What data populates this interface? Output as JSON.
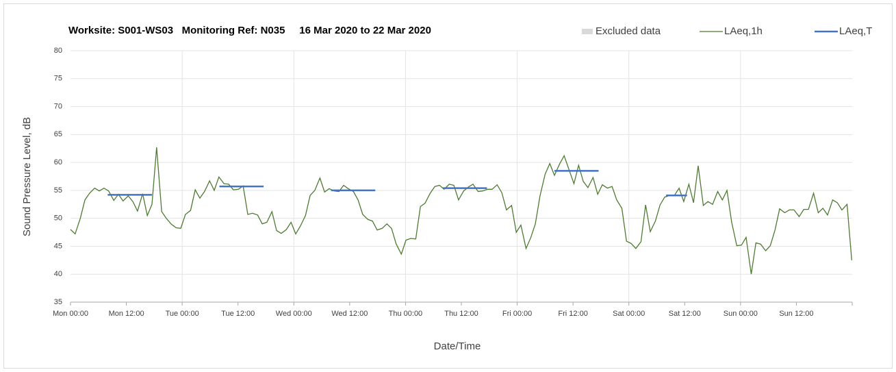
{
  "chart_data": {
    "type": "line",
    "title": "Worksite: S001-WS03   Monitoring Ref: N035     16 Mar 2020 to 22 Mar 2020",
    "xlabel": "Date/Time",
    "ylabel": "Sound Pressure Level, dB",
    "xlim": [
      0,
      168
    ],
    "ylim": [
      35,
      80
    ],
    "yticks": [
      35,
      40,
      45,
      50,
      55,
      60,
      65,
      70,
      75,
      80
    ],
    "xticks": [
      {
        "value": 0,
        "label": "Mon 00:00"
      },
      {
        "value": 12,
        "label": "Mon 12:00"
      },
      {
        "value": 24,
        "label": "Tue 00:00"
      },
      {
        "value": 36,
        "label": "Tue 12:00"
      },
      {
        "value": 48,
        "label": "Wed 00:00"
      },
      {
        "value": 60,
        "label": "Wed 12:00"
      },
      {
        "value": 72,
        "label": "Thu 00:00"
      },
      {
        "value": 84,
        "label": "Thu 12:00"
      },
      {
        "value": 96,
        "label": "Fri 00:00"
      },
      {
        "value": 108,
        "label": "Fri 12:00"
      },
      {
        "value": 120,
        "label": "Sat 00:00"
      },
      {
        "value": 132,
        "label": "Sat 12:00"
      },
      {
        "value": 144,
        "label": "Sun 00:00"
      },
      {
        "value": 156,
        "label": "Sun 12:00"
      }
    ],
    "grid": true,
    "excluded": {
      "name": "Excluded data",
      "color": "#d9d9d9"
    },
    "series": [
      {
        "name": "LAeq,1h",
        "color": "#4e7a32",
        "x": [
          0,
          1.0,
          2.1,
          3.1,
          4.1,
          5.2,
          6.2,
          7.2,
          8.2,
          9.3,
          10.3,
          11.3,
          12.4,
          13.4,
          14.4,
          15.5,
          16.5,
          17.5,
          18.5,
          19.6,
          20.6,
          21.6,
          22.7,
          23.7,
          24.7,
          25.8,
          26.8,
          27.8,
          28.8,
          29.9,
          30.9,
          31.9,
          33.0,
          34.0,
          35.0,
          36.1,
          37.1,
          38.1,
          39.1,
          40.2,
          41.2,
          42.2,
          43.3,
          44.3,
          45.3,
          46.4,
          47.4,
          48.4,
          49.4,
          50.5,
          51.5,
          52.5,
          53.6,
          54.6,
          55.6,
          56.7,
          57.7,
          58.7,
          59.7,
          60.8,
          61.8,
          62.8,
          63.9,
          64.9,
          65.9,
          67.0,
          68.0,
          69.0,
          70.0,
          71.1,
          72.1,
          73.1,
          74.2,
          75.2,
          76.2,
          77.3,
          78.3,
          79.3,
          80.3,
          81.4,
          82.4,
          83.4,
          84.5,
          85.5,
          86.5,
          87.6,
          88.6,
          89.6,
          90.6,
          91.7,
          92.7,
          93.7,
          94.8,
          95.8,
          96.8,
          97.9,
          98.9,
          99.9,
          100.9,
          102.0,
          103.0,
          104.0,
          105.1,
          106.1,
          107.1,
          108.2,
          109.2,
          110.2,
          111.2,
          112.3,
          113.3,
          114.3,
          115.4,
          116.4,
          117.4,
          118.5,
          119.5,
          120.5,
          121.5,
          122.6,
          123.6,
          124.6,
          125.7,
          126.7,
          127.7,
          128.8,
          129.8,
          130.8,
          131.8,
          132.9,
          133.9,
          134.9,
          136.0,
          137.0,
          138.0,
          139.1,
          140.1,
          141.1,
          142.1,
          143.2,
          144.2,
          145.2,
          146.3,
          147.3,
          148.3,
          149.4,
          150.4,
          151.4,
          152.4,
          153.5,
          154.5,
          155.5,
          156.6,
          157.6,
          158.6,
          159.7,
          160.7,
          161.7,
          162.7,
          163.8,
          164.8,
          165.8,
          166.9,
          167.9
        ],
        "values": [
          48,
          47.2,
          50,
          53.3,
          54.5,
          55.4,
          54.9,
          55.4,
          54.9,
          53.2,
          54.3,
          53.1,
          54.0,
          53.0,
          51.3,
          54.4,
          50.5,
          52.5,
          62.7,
          51.2,
          50,
          49,
          48.3,
          48.2,
          50.7,
          51.4,
          55.1,
          53.6,
          54.8,
          56.7,
          55,
          57.4,
          56.2,
          56.1,
          55.1,
          55.2,
          55.8,
          50.7,
          50.9,
          50.6,
          49.0,
          49.3,
          51.2,
          47.8,
          47.3,
          48.0,
          49.3,
          47.2,
          48.6,
          50.5,
          54.1,
          55,
          57.2,
          54.7,
          55.3,
          54.9,
          54.8,
          55.9,
          55.3,
          54.8,
          53.3,
          50.7,
          49.8,
          49.5,
          47.9,
          48.2,
          49.0,
          48.2,
          45.4,
          43.6,
          46.1,
          46.4,
          46.3,
          52.1,
          52.7,
          54.5,
          55.7,
          55.9,
          55.2,
          56.1,
          55.9,
          53.3,
          54.9,
          55.6,
          56.1,
          54.8,
          54.9,
          55.2,
          55.2,
          56.0,
          54.6,
          51.5,
          52.3,
          47.5,
          48.8,
          44.6,
          46.5,
          49.0,
          54.0,
          57.9,
          59.8,
          57.7,
          59.7,
          61.2,
          58.8,
          56.2,
          59.5,
          56.6,
          55.5,
          57.3,
          54.3,
          56.0,
          55.4,
          55.7,
          53.3,
          51.8,
          45.9,
          45.5,
          44.6,
          45.8,
          52.4,
          47.6,
          49.5,
          52.4,
          53.8,
          54.1,
          54.1,
          55.4,
          53.0,
          56.1,
          52.8,
          59.4,
          52.3,
          53.0,
          52.5,
          54.8,
          53.3,
          55.0,
          49.3,
          45.1,
          45.2,
          46.6,
          40.0,
          45.6,
          45.4,
          44.2,
          45.1,
          47.9,
          51.7,
          51.0,
          51.5,
          51.5,
          50.3,
          51.6,
          51.6,
          54.5,
          51.0,
          51.8,
          50.6,
          53.3,
          52.8,
          51.5,
          52.5,
          42.5
        ]
      },
      {
        "name": "LAeq,T",
        "color": "#4472c4",
        "segments": [
          {
            "start": 8,
            "end": 17.5,
            "value": 54.2
          },
          {
            "start": 32,
            "end": 41.5,
            "value": 55.7
          },
          {
            "start": 56,
            "end": 65.5,
            "value": 55.0
          },
          {
            "start": 80,
            "end": 89.5,
            "value": 55.4
          },
          {
            "start": 104,
            "end": 113.5,
            "value": 58.5
          },
          {
            "start": 128,
            "end": 132.5,
            "value": 54.1
          }
        ]
      }
    ]
  }
}
